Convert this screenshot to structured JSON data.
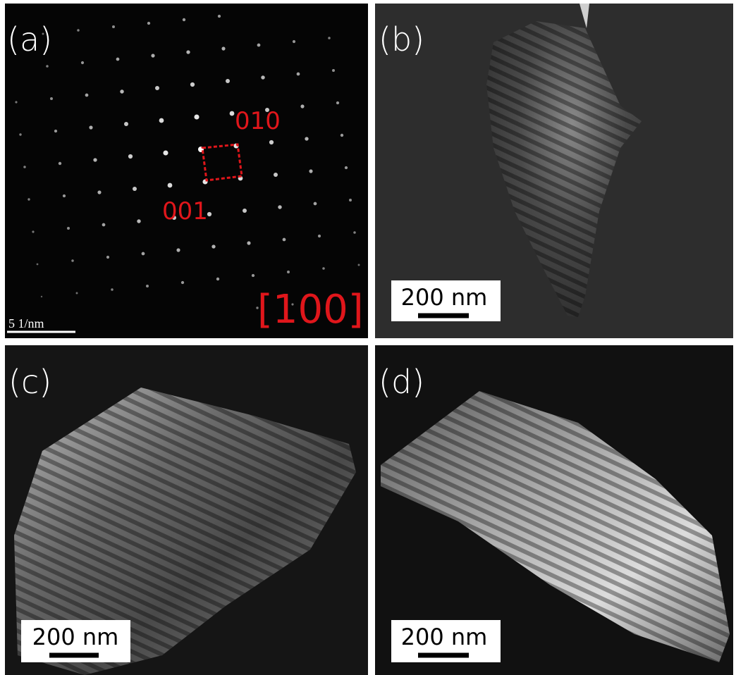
{
  "panels": [
    {
      "label": "(a)",
      "annotations": [
        "010",
        "001",
        "[100]"
      ],
      "scale_bar": "5 1/nm"
    },
    {
      "label": "(b)",
      "scale_bar": "200 nm"
    },
    {
      "label": "(c)",
      "scale_bar": "200 nm"
    },
    {
      "label": "(d)",
      "scale_bar": "200 nm"
    }
  ]
}
